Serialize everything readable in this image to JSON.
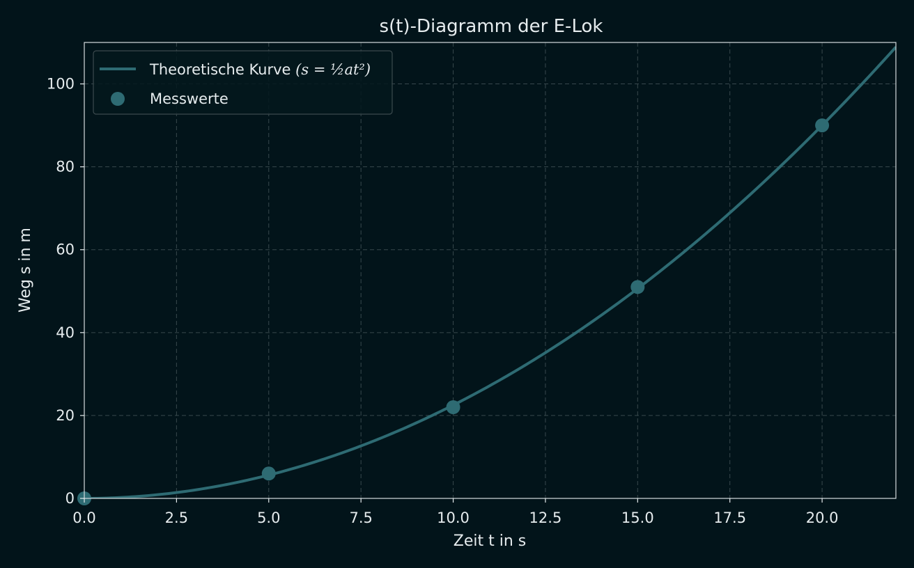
{
  "chart_data": {
    "type": "line",
    "title": "s(t)-Diagramm der E-Lok",
    "xlabel": "Zeit t in s",
    "ylabel": "Weg s in m",
    "xlim": [
      0,
      22
    ],
    "ylim": [
      0,
      110
    ],
    "xticks": [
      "0.0",
      "2.5",
      "5.0",
      "7.5",
      "10.0",
      "12.5",
      "15.0",
      "17.5",
      "20.0"
    ],
    "xtick_values": [
      0,
      2.5,
      5,
      7.5,
      10,
      12.5,
      15,
      17.5,
      20
    ],
    "yticks": [
      "0",
      "20",
      "40",
      "60",
      "80",
      "100"
    ],
    "ytick_values": [
      0,
      20,
      40,
      60,
      80,
      100
    ],
    "grid": true,
    "legend_position": "top-left",
    "colors": {
      "series": "#2e6b73",
      "background": "#02141a",
      "text": "#e6ecee"
    },
    "legend": {
      "curve_label": "Theoretische Kurve",
      "curve_formula": "(s = ½at²)",
      "points_label": "Messwerte"
    },
    "series": [
      {
        "name": "Theoretische Kurve (s = ½at²)",
        "kind": "line",
        "a": 0.45
      },
      {
        "name": "Messwerte",
        "kind": "scatter",
        "x": [
          0,
          5,
          10,
          15,
          20
        ],
        "y": [
          0,
          6,
          22,
          51,
          90
        ]
      }
    ]
  }
}
